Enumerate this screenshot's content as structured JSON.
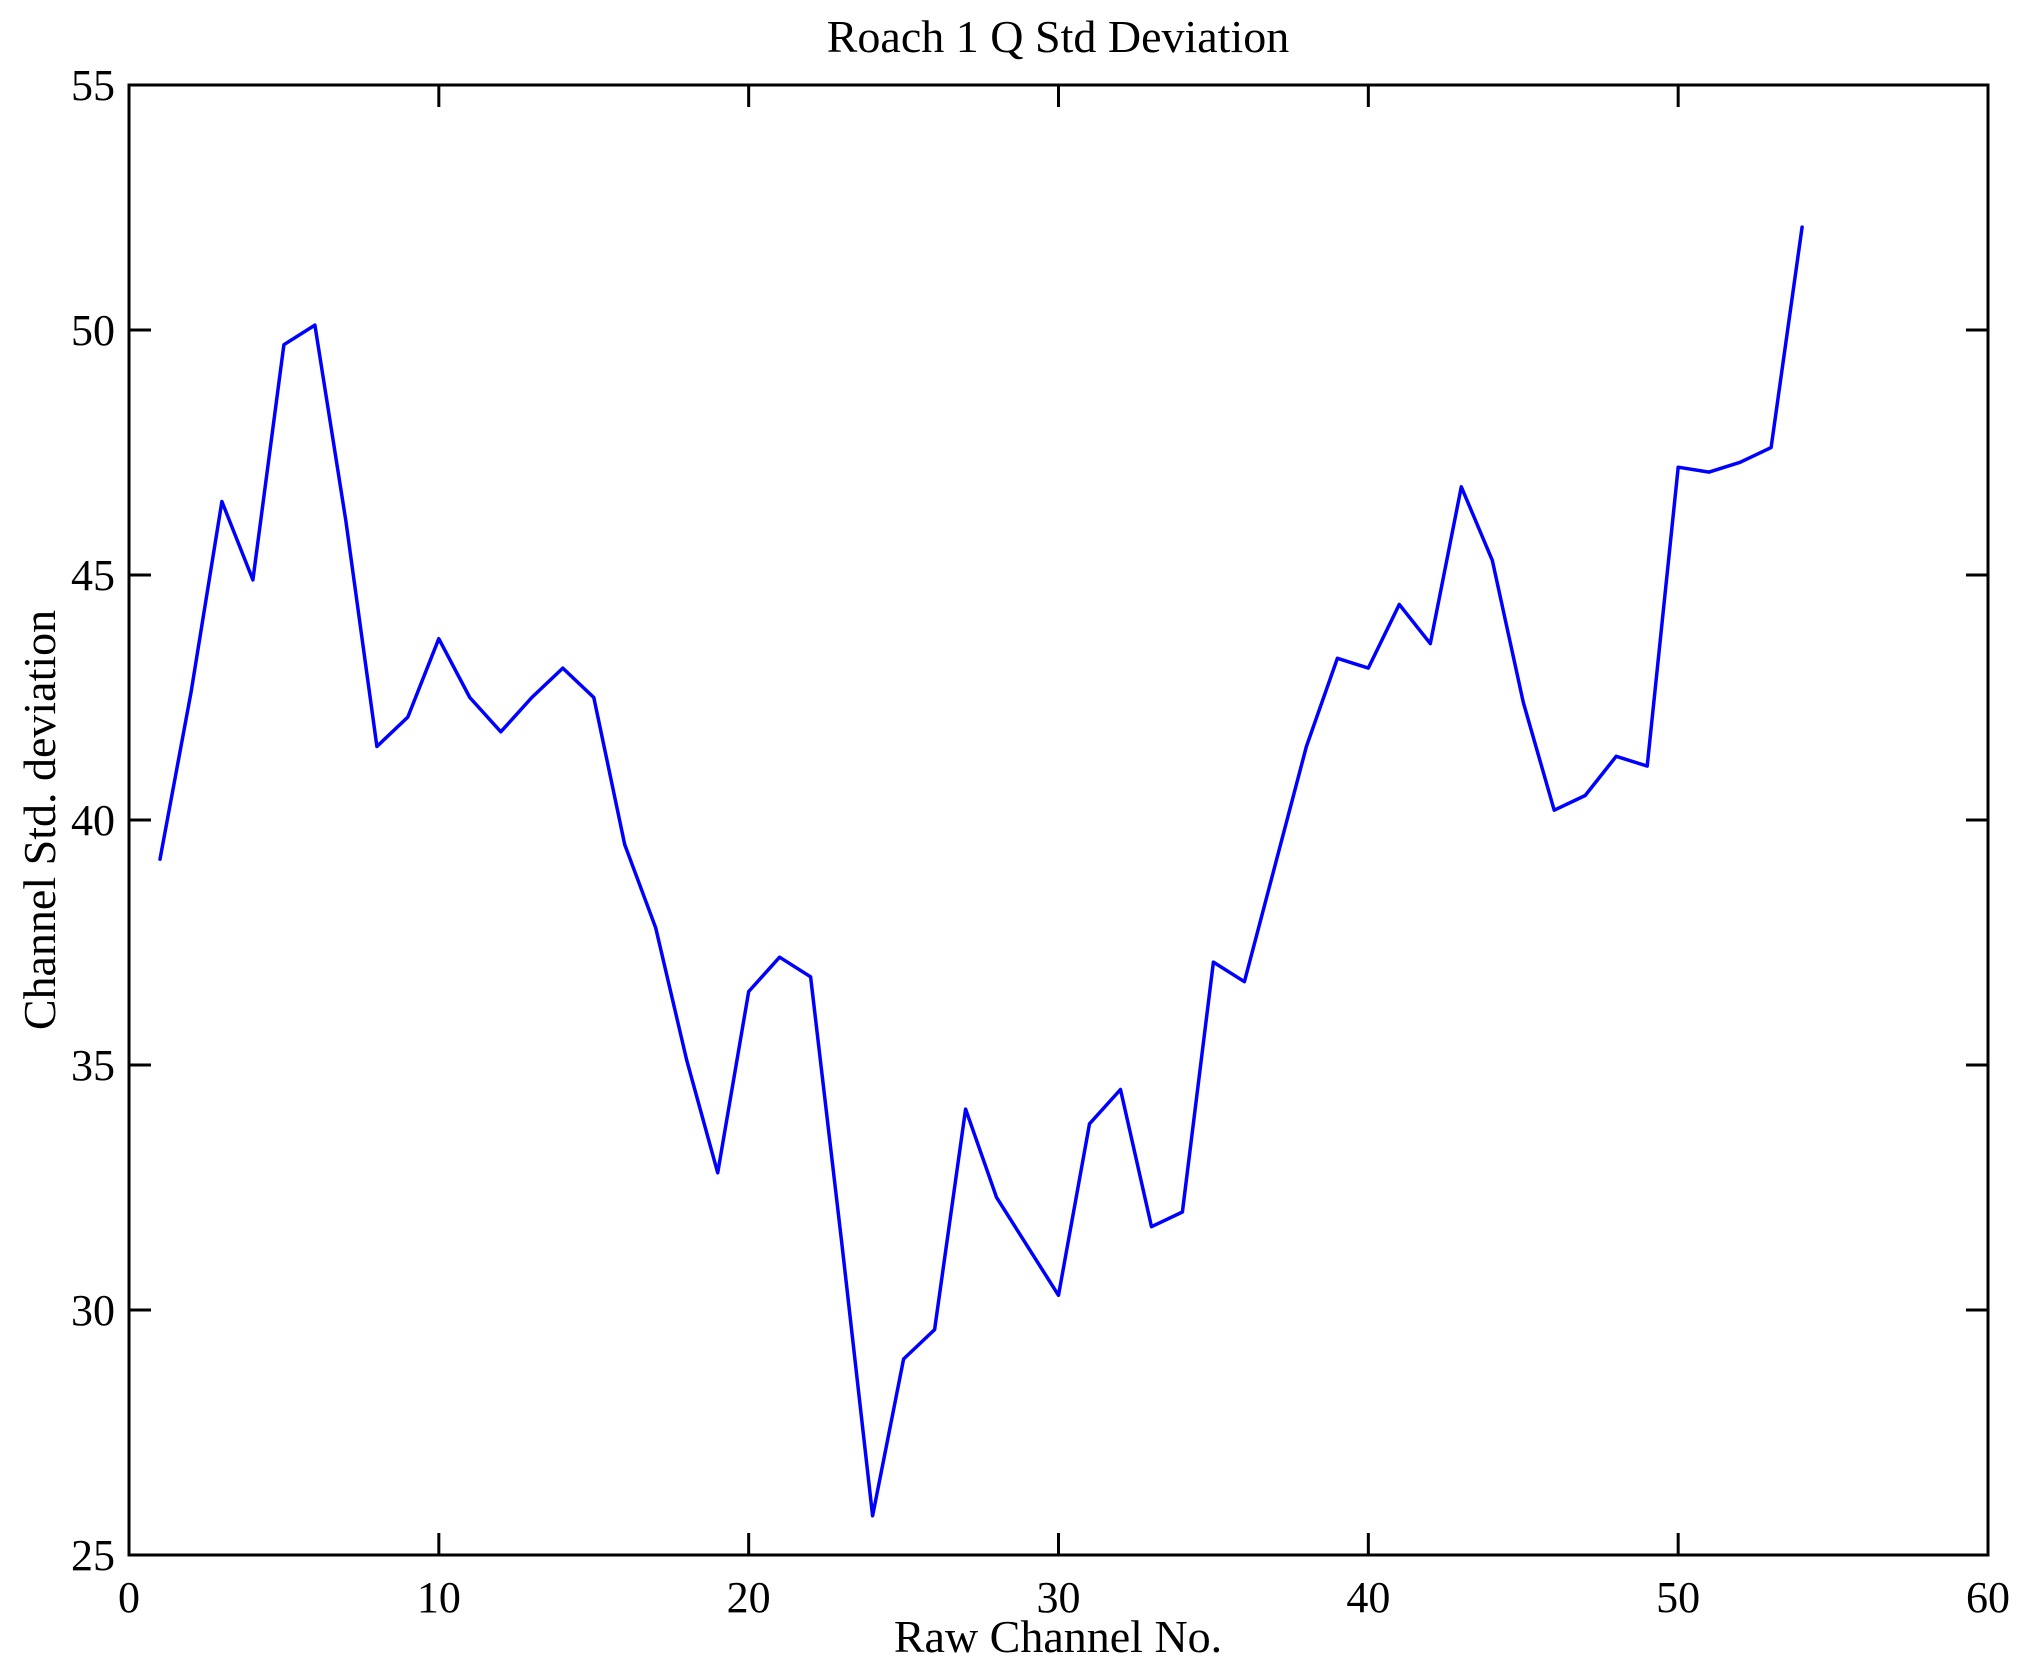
{
  "title": "Roach 1 Q Std Deviation",
  "chart_data": {
    "type": "line",
    "title": "Roach 1 Q Std Deviation",
    "xlabel": "Raw Channel No.",
    "ylabel": "Channel Std. deviation",
    "xlim": [
      0,
      60
    ],
    "ylim": [
      25,
      55
    ],
    "x_ticks": [
      0,
      10,
      20,
      30,
      40,
      50,
      60
    ],
    "y_ticks": [
      25,
      30,
      35,
      40,
      45,
      50,
      55
    ],
    "grid": false,
    "legend_position": "none",
    "line_color": "#0000FF",
    "axis_color": "#000000",
    "background_color": "#FFFFFF",
    "series": [
      {
        "name": "Channel Std deviation",
        "x": [
          1,
          2,
          3,
          4,
          5,
          6,
          7,
          8,
          9,
          10,
          11,
          12,
          13,
          14,
          15,
          16,
          17,
          18,
          19,
          20,
          21,
          22,
          23,
          24,
          25,
          26,
          27,
          28,
          29,
          30,
          31,
          32,
          33,
          34,
          35,
          36,
          37,
          38,
          39,
          40,
          41,
          42,
          43,
          44,
          45,
          46,
          47,
          48,
          49,
          50,
          51,
          52,
          53,
          54
        ],
        "values": [
          39.2,
          42.6,
          46.5,
          44.9,
          49.7,
          50.1,
          46.1,
          41.5,
          42.1,
          43.7,
          42.5,
          41.8,
          42.5,
          43.1,
          42.5,
          39.5,
          37.8,
          35.1,
          32.8,
          36.5,
          37.2,
          36.8,
          31.4,
          25.8,
          29.0,
          29.6,
          34.1,
          32.3,
          31.3,
          30.3,
          33.8,
          34.5,
          31.7,
          32.0,
          37.1,
          36.7,
          39.1,
          41.5,
          43.3,
          43.1,
          44.4,
          43.6,
          46.8,
          45.3,
          42.4,
          40.2,
          40.5,
          41.3,
          41.1,
          47.2,
          47.1,
          47.3,
          47.6,
          52.1
        ]
      }
    ]
  }
}
